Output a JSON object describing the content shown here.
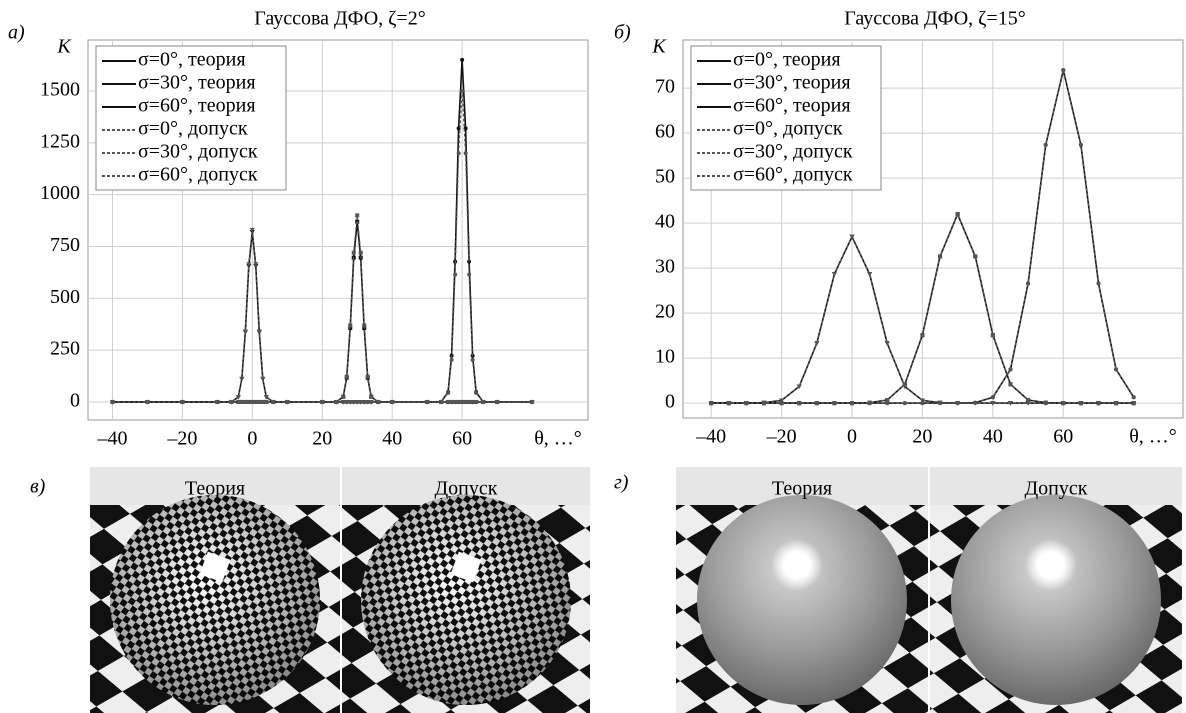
{
  "chart_data": [
    {
      "type": "line",
      "panel": "а)",
      "title": "Гауссова ДФО, ζ=2°",
      "ylabel": "K",
      "xlabel": "θ, …°",
      "x": [
        -40,
        -30,
        -20,
        -10,
        -6,
        -4,
        -3,
        -2,
        -1,
        0,
        1,
        2,
        3,
        4,
        6,
        10,
        20,
        24,
        26,
        27,
        28,
        29,
        30,
        31,
        32,
        33,
        34,
        36,
        40,
        50,
        54,
        56,
        57,
        58,
        59,
        60,
        61,
        62,
        63,
        64,
        66,
        70,
        80
      ],
      "xlim": [
        -47,
        96
      ],
      "xticks": [
        {
          "value": -40,
          "label": "–40"
        },
        {
          "value": -20,
          "label": "–20"
        },
        0,
        20,
        40,
        60
      ],
      "ylim": [
        -87,
        1746
      ],
      "yticks": [
        0,
        250,
        500,
        750,
        1000,
        1250,
        1500
      ],
      "grid": true,
      "legend": "upper-left",
      "series": [
        {
          "name": "σ=0°, теория",
          "color": "#111111",
          "dash": false,
          "marker": "triangle",
          "values": [
            0,
            0,
            0,
            0,
            0,
            24,
            111,
            336,
            656,
            820,
            656,
            336,
            111,
            24,
            0,
            0,
            0,
            0,
            0,
            0,
            0,
            0,
            0,
            0,
            0,
            0,
            0,
            0,
            0,
            0,
            0,
            0,
            0,
            0,
            0,
            0,
            0,
            0,
            0,
            0,
            0,
            0,
            0
          ]
        },
        {
          "name": "σ=30°, теория",
          "color": "#111111",
          "dash": false,
          "marker": "square",
          "values": [
            0,
            0,
            0,
            0,
            0,
            0,
            0,
            0,
            0,
            0,
            0,
            0,
            0,
            0,
            0,
            0,
            0,
            0,
            25,
            117,
            357,
            696,
            870,
            696,
            357,
            117,
            25,
            0,
            0,
            0,
            0,
            0,
            0,
            0,
            0,
            0,
            0,
            0,
            0,
            0,
            0,
            0,
            0
          ]
        },
        {
          "name": "σ=60°, теория",
          "color": "#111111",
          "dash": false,
          "marker": "circle",
          "values": [
            0,
            0,
            0,
            0,
            0,
            0,
            0,
            0,
            0,
            0,
            0,
            0,
            0,
            0,
            0,
            0,
            0,
            0,
            0,
            0,
            0,
            0,
            0,
            0,
            0,
            0,
            0,
            0,
            0,
            0,
            0,
            48,
            223,
            677,
            1320,
            1650,
            1320,
            677,
            223,
            48,
            0,
            0,
            0
          ]
        },
        {
          "name": "σ=0°, допуск",
          "color": "#555555",
          "dash": true,
          "marker": "triangle",
          "values": [
            0,
            0,
            0,
            0,
            0,
            24,
            112,
            340,
            664,
            830,
            664,
            340,
            112,
            24,
            0,
            0,
            0,
            0,
            0,
            0,
            0,
            0,
            0,
            0,
            0,
            0,
            0,
            0,
            0,
            0,
            0,
            0,
            0,
            0,
            0,
            0,
            0,
            0,
            0,
            0,
            0,
            0,
            0
          ]
        },
        {
          "name": "σ=30°, допуск",
          "color": "#555555",
          "dash": true,
          "marker": "square",
          "values": [
            0,
            0,
            0,
            0,
            0,
            0,
            0,
            0,
            0,
            0,
            0,
            0,
            0,
            0,
            0,
            0,
            0,
            0,
            26,
            122,
            369,
            720,
            900,
            720,
            369,
            122,
            26,
            0,
            0,
            0,
            0,
            0,
            0,
            0,
            0,
            0,
            0,
            0,
            0,
            0,
            0,
            0,
            0
          ]
        },
        {
          "name": "σ=60°, допуск",
          "color": "#555555",
          "dash": true,
          "marker": "circle",
          "values": [
            0,
            0,
            0,
            0,
            0,
            0,
            0,
            0,
            0,
            0,
            0,
            0,
            0,
            0,
            0,
            0,
            0,
            0,
            0,
            0,
            0,
            0,
            0,
            0,
            0,
            0,
            0,
            0,
            0,
            0,
            0,
            44,
            203,
            615,
            1200,
            1500,
            1200,
            615,
            203,
            44,
            0,
            0,
            0
          ]
        }
      ]
    },
    {
      "type": "line",
      "panel": "б)",
      "title": "Гауссова ДФО, ζ=15°",
      "ylabel": "K",
      "xlabel": "θ, …°",
      "x": [
        -40,
        -35,
        -30,
        -25,
        -20,
        -15,
        -10,
        -5,
        0,
        5,
        10,
        15,
        20,
        25,
        30,
        35,
        40,
        45,
        50,
        55,
        60,
        65,
        70,
        75,
        80
      ],
      "xlim": [
        -48,
        94
      ],
      "xticks": [
        {
          "value": -40,
          "label": "–40"
        },
        {
          "value": -20,
          "label": "–20"
        },
        0,
        20,
        40,
        60
      ],
      "ylim": [
        -3.3,
        80.7
      ],
      "yticks": [
        0,
        10,
        20,
        30,
        40,
        50,
        60,
        70
      ],
      "grid": true,
      "legend": "upper-left",
      "series": [
        {
          "name": "σ=0°, теория",
          "color": "#111111",
          "dash": false,
          "marker": "triangle",
          "values": [
            0,
            0,
            0,
            0.1,
            0.6,
            3.7,
            13.3,
            28.7,
            37,
            28.7,
            13.3,
            3.7,
            0.6,
            0.1,
            0,
            0,
            0,
            0,
            0,
            0,
            0,
            0,
            0,
            0,
            0
          ]
        },
        {
          "name": "σ=30°, теория",
          "color": "#111111",
          "dash": false,
          "marker": "square",
          "values": [
            0,
            0,
            0,
            0,
            0,
            0,
            0,
            0,
            0,
            0.1,
            0.7,
            4.2,
            15.1,
            32.6,
            42,
            32.6,
            15.1,
            4.2,
            0.7,
            0.1,
            0,
            0,
            0,
            0,
            0
          ]
        },
        {
          "name": "σ=60°, теория",
          "color": "#111111",
          "dash": false,
          "marker": "circle",
          "values": [
            0,
            0,
            0,
            0,
            0,
            0,
            0,
            0,
            0,
            0,
            0,
            0,
            0,
            0,
            0,
            0.1,
            1.3,
            7.5,
            26.6,
            57.4,
            74,
            57.4,
            26.6,
            7.5,
            1.3
          ]
        },
        {
          "name": "σ=0°, допуск",
          "color": "#555555",
          "dash": true,
          "marker": "triangle",
          "values": [
            0,
            0,
            0,
            0.1,
            0.6,
            3.7,
            13.3,
            28.7,
            37,
            28.7,
            13.3,
            3.7,
            0.6,
            0.1,
            0,
            0,
            0,
            0,
            0,
            0,
            0,
            0,
            0,
            0,
            0
          ]
        },
        {
          "name": "σ=30°, допуск",
          "color": "#555555",
          "dash": true,
          "marker": "square",
          "values": [
            0,
            0,
            0,
            0,
            0,
            0,
            0,
            0,
            0,
            0.1,
            0.7,
            4.2,
            15.1,
            32.6,
            42,
            32.6,
            15.1,
            4.2,
            0.7,
            0.1,
            0,
            0,
            0,
            0,
            0
          ]
        },
        {
          "name": "σ=60°, допуск",
          "color": "#555555",
          "dash": true,
          "marker": "circle",
          "values": [
            0,
            0,
            0,
            0,
            0,
            0,
            0,
            0,
            0,
            0,
            0,
            0,
            0,
            0,
            0,
            0.1,
            1.3,
            7.5,
            26.6,
            57.4,
            74,
            57.4,
            26.6,
            7.5,
            1.3
          ]
        }
      ]
    }
  ],
  "renderings": [
    {
      "panel": "в)",
      "views": [
        "Теория",
        "Допуск"
      ]
    },
    {
      "panel": "г)",
      "views": [
        "Теория",
        "Допуск"
      ]
    }
  ]
}
